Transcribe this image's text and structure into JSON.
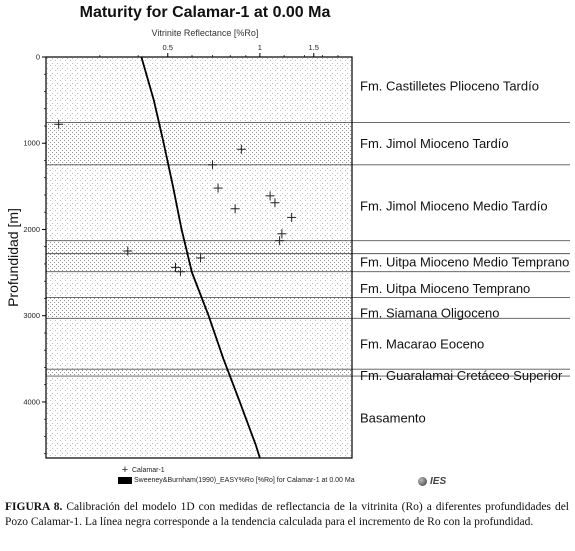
{
  "chart_data": {
    "type": "scatter",
    "title": "Maturity for Calamar-1 at 0.00 Ma",
    "xlabel": "Vitrinite Reflectance [%Ro]",
    "ylabel": "Profundidad [m]",
    "x_scale": "log",
    "xlim": [
      0.2,
      2.0
    ],
    "ylim": [
      4650,
      0
    ],
    "x_ticks": [
      0.5,
      1,
      1.5
    ],
    "y_ticks": [
      0,
      1000,
      2000,
      3000,
      4000
    ],
    "formation_boundaries": [
      760,
      1250,
      2130,
      2280,
      2490,
      2790,
      3030,
      3620,
      3700
    ],
    "formations": [
      {
        "name": "Fm. Castilletes Plioceno Tardío",
        "top": 0,
        "base": 760,
        "label_depth": 330
      },
      {
        "name": "Fm. Jimol Mioceno Tardío",
        "top": 760,
        "base": 1250,
        "label_depth": 1000
      },
      {
        "name": "Fm. Jimol Mioceno Medio Tardío",
        "top": 1250,
        "base": 2130,
        "label_depth": 1720
      },
      {
        "name": "Fm. Uitpa Mioceno Medio Temprano",
        "top": 2130,
        "base": 2490,
        "label_depth": 2370
      },
      {
        "name": "Fm. Uitpa Mioceno Temprano",
        "top": 2490,
        "base": 2790,
        "label_depth": 2680
      },
      {
        "name": "Fm. Siamana Oligoceno",
        "top": 2790,
        "base": 3030,
        "label_depth": 2960
      },
      {
        "name": "Fm. Macarao Eoceno",
        "top": 3030,
        "base": 3620,
        "label_depth": 3320
      },
      {
        "name": "Fm. Guaralamai Cretáceo Superior",
        "top": 3620,
        "base": 3700,
        "label_depth": 3690
      },
      {
        "name": "Basamento",
        "top": 3700,
        "base": 4650,
        "label_depth": 4180
      }
    ],
    "series": [
      {
        "name": "Calamar-1",
        "marker": "plus",
        "points": [
          {
            "x": 0.22,
            "y": 780
          },
          {
            "x": 0.87,
            "y": 1070
          },
          {
            "x": 0.7,
            "y": 1250
          },
          {
            "x": 0.73,
            "y": 1520
          },
          {
            "x": 1.08,
            "y": 1610
          },
          {
            "x": 1.12,
            "y": 1690
          },
          {
            "x": 0.83,
            "y": 1760
          },
          {
            "x": 1.27,
            "y": 1860
          },
          {
            "x": 1.18,
            "y": 2050
          },
          {
            "x": 1.16,
            "y": 2130
          },
          {
            "x": 0.37,
            "y": 2250
          },
          {
            "x": 0.64,
            "y": 2330
          },
          {
            "x": 0.53,
            "y": 2440
          },
          {
            "x": 0.55,
            "y": 2490
          }
        ]
      },
      {
        "name": "Sweeney&Burnham(1990)_EASY%Ro [%Ro] for Calamar-1 at 0.00 Ma",
        "style": "line",
        "color": "#000000",
        "points": [
          {
            "x": 0.41,
            "y": 0
          },
          {
            "x": 0.45,
            "y": 500
          },
          {
            "x": 0.485,
            "y": 1000
          },
          {
            "x": 0.52,
            "y": 1500
          },
          {
            "x": 0.555,
            "y": 2000
          },
          {
            "x": 0.6,
            "y": 2500
          },
          {
            "x": 0.68,
            "y": 3000
          },
          {
            "x": 0.76,
            "y": 3500
          },
          {
            "x": 0.86,
            "y": 4000
          },
          {
            "x": 0.97,
            "y": 4500
          },
          {
            "x": 1.0,
            "y": 4650
          }
        ]
      }
    ],
    "legend_position": "bottom-left",
    "colors": {
      "frame": "#000000",
      "boundary": "#555555",
      "stipple_dark": "#9a9a9a",
      "stipple_light": "#c4c4c4",
      "background": "#ffffff"
    }
  },
  "legend": {
    "items": [
      "Calamar-1",
      "Sweeney&Burnham(1990)_EASY%Ro [%Ro] for Calamar-1 at 0.00 Ma"
    ]
  },
  "logo_text": "IES",
  "caption": {
    "label": "FIGURA 8.",
    "text": " Calibración del modelo 1D con medidas de reflectancia de la vitrinita (Ro) a diferentes profundidades del Pozo Calamar-1. La línea negra corresponde a la tendencia calculada para el incremento de Ro con la profundidad."
  }
}
